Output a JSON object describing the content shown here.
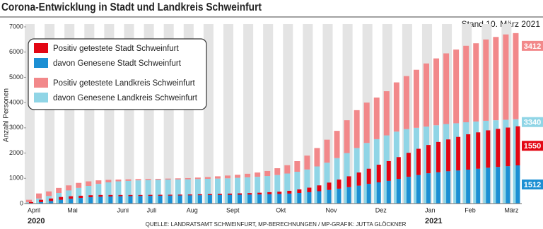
{
  "chart_data": {
    "type": "bar",
    "title": "Corona-Entwicklung in Stadt und Landkreis Schweinfurt",
    "subtitle": "Stand 10. März 2021",
    "y_label": "Anzahl Personen",
    "source": "QUELLE: LANDRATSAMT SCHWEINFURT, MP-BERECHNUNGEN / MP-GRAFIK: JUTTA GLÖCKNER",
    "categories": [
      "April",
      null,
      null,
      null,
      "Mai",
      null,
      null,
      null,
      null,
      "Juni",
      null,
      null,
      "Juli",
      null,
      null,
      null,
      "Aug",
      null,
      null,
      null,
      "Sept",
      null,
      null,
      null,
      null,
      "Okt",
      null,
      null,
      null,
      null,
      "Nov",
      null,
      null,
      null,
      null,
      "Dez",
      null,
      null,
      null,
      null,
      "Jan",
      null,
      null,
      null,
      "Feb",
      null,
      null,
      null,
      "März",
      null
    ],
    "years": [
      "2020",
      null,
      null,
      null,
      null,
      null,
      null,
      null,
      null,
      null,
      null,
      null,
      null,
      null,
      null,
      null,
      null,
      null,
      null,
      null,
      null,
      null,
      null,
      null,
      null,
      null,
      null,
      null,
      null,
      null,
      null,
      null,
      null,
      null,
      null,
      null,
      null,
      null,
      null,
      null,
      "2021",
      null,
      null,
      null,
      null,
      null,
      null,
      null,
      null,
      null
    ],
    "ylim": [
      0,
      7000
    ],
    "yticks": [
      0,
      1000,
      2000,
      3000,
      4000,
      5000,
      6000,
      7000
    ],
    "series": [
      {
        "name": "Positiv getestete Stadt Schweinfurt",
        "color": "#e30613",
        "values": [
          40,
          90,
          100,
          110,
          100,
          90,
          80,
          70,
          60,
          50,
          45,
          40,
          40,
          38,
          35,
          35,
          35,
          38,
          40,
          45,
          50,
          55,
          60,
          70,
          80,
          90,
          110,
          140,
          180,
          230,
          290,
          360,
          430,
          520,
          600,
          700,
          780,
          860,
          950,
          1040,
          1120,
          1200,
          1260,
          1330,
          1400,
          1440,
          1480,
          1510,
          1530,
          1550
        ]
      },
      {
        "name": "davon Genesene Stadt Schweinfurt",
        "color": "#1c8fd3",
        "values": [
          20,
          60,
          100,
          150,
          190,
          220,
          250,
          270,
          280,
          290,
          295,
          300,
          305,
          310,
          315,
          320,
          325,
          330,
          335,
          340,
          345,
          350,
          355,
          360,
          370,
          380,
          395,
          420,
          450,
          490,
          540,
          590,
          650,
          710,
          780,
          840,
          900,
          980,
          1060,
          1130,
          1200,
          1240,
          1280,
          1310,
          1345,
          1380,
          1420,
          1450,
          1480,
          1512
        ]
      },
      {
        "name": "Positiv getestete Landkreis Schweinfurt",
        "color": "#f2888a",
        "values": [
          100,
          200,
          180,
          200,
          200,
          200,
          180,
          140,
          100,
          70,
          60,
          50,
          45,
          40,
          40,
          45,
          50,
          60,
          70,
          90,
          110,
          120,
          140,
          170,
          200,
          270,
          330,
          420,
          550,
          730,
          910,
          1080,
          1300,
          1500,
          1600,
          1650,
          1750,
          1950,
          2100,
          2300,
          2500,
          2650,
          2800,
          2920,
          3030,
          3100,
          3220,
          3300,
          3380,
          3412
        ]
      },
      {
        "name": "davon Genesene Landkreis Schweinfurt",
        "color": "#90d5e6",
        "values": [
          50,
          200,
          300,
          420,
          520,
          620,
          700,
          780,
          840,
          880,
          900,
          920,
          930,
          940,
          950,
          955,
          960,
          970,
          980,
          990,
          1000,
          1020,
          1040,
          1060,
          1090,
          1130,
          1190,
          1260,
          1350,
          1470,
          1620,
          1800,
          2000,
          2200,
          2400,
          2550,
          2700,
          2850,
          2950,
          3000,
          3050,
          3100,
          3150,
          3180,
          3220,
          3250,
          3280,
          3300,
          3320,
          3340
        ]
      }
    ]
  }
}
